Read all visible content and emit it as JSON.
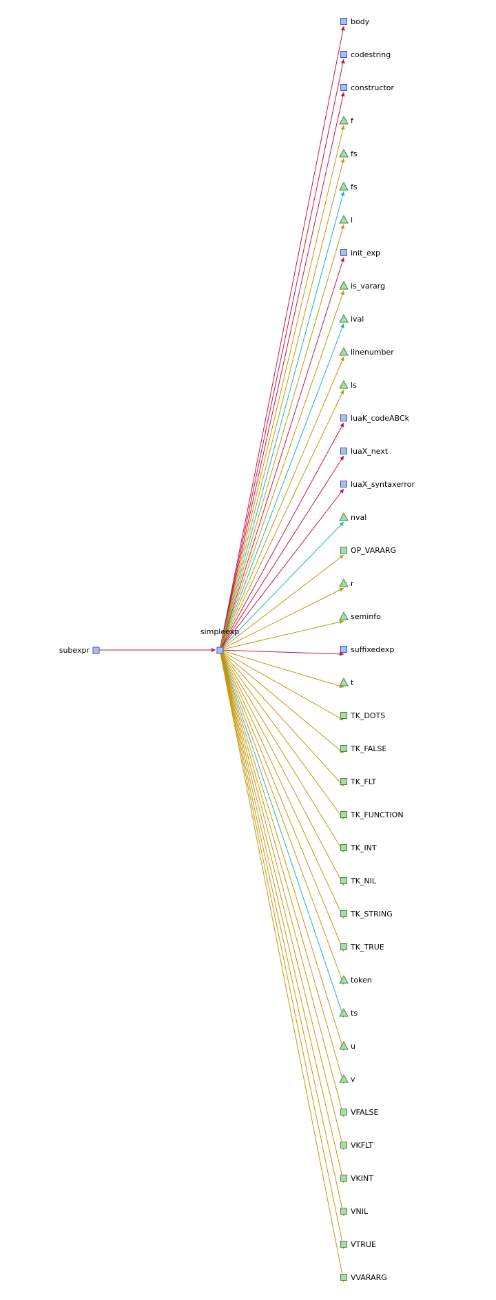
{
  "colors": {
    "call": "#c8143c",
    "read": "#c8960a",
    "write": "#1ab4b4",
    "func_fill": "#aabff0",
    "func_stroke": "#3c5aa0",
    "var_fill": "#aed9ae",
    "var_stroke": "#3c8c3c",
    "const_fill": "#aed9ae",
    "const_stroke": "#3c8c3c"
  },
  "source": {
    "id": "subexpr",
    "label": "subexpr",
    "shape": "square-blue"
  },
  "center": {
    "id": "simpleexp",
    "label": "simpleexp",
    "shape": "square-blue"
  },
  "targets": [
    {
      "label": "body",
      "shape": "square-blue",
      "edge": "call"
    },
    {
      "label": "codestring",
      "shape": "square-blue",
      "edge": "call"
    },
    {
      "label": "constructor",
      "shape": "square-blue",
      "edge": "call"
    },
    {
      "label": "f",
      "shape": "triangle",
      "edge": "read"
    },
    {
      "label": "fs",
      "shape": "triangle",
      "edge": "read"
    },
    {
      "label": "fs",
      "shape": "triangle",
      "edge": "write"
    },
    {
      "label": "i",
      "shape": "triangle",
      "edge": "read"
    },
    {
      "label": "init_exp",
      "shape": "square-blue",
      "edge": "call"
    },
    {
      "label": "is_vararg",
      "shape": "triangle",
      "edge": "read"
    },
    {
      "label": "ival",
      "shape": "triangle",
      "edge": "write"
    },
    {
      "label": "linenumber",
      "shape": "triangle",
      "edge": "read"
    },
    {
      "label": "ls",
      "shape": "triangle",
      "edge": "read"
    },
    {
      "label": "luaK_codeABCk",
      "shape": "square-blue",
      "edge": "call"
    },
    {
      "label": "luaX_next",
      "shape": "square-blue",
      "edge": "call"
    },
    {
      "label": "luaX_syntaxerror",
      "shape": "square-blue",
      "edge": "call"
    },
    {
      "label": "nval",
      "shape": "triangle",
      "edge": "write"
    },
    {
      "label": "OP_VARARG",
      "shape": "square-green",
      "edge": "read"
    },
    {
      "label": "r",
      "shape": "triangle",
      "edge": "read"
    },
    {
      "label": "seminfo",
      "shape": "triangle",
      "edge": "read"
    },
    {
      "label": "suffixedexp",
      "shape": "square-blue",
      "edge": "call"
    },
    {
      "label": "t",
      "shape": "triangle",
      "edge": "read"
    },
    {
      "label": "TK_DOTS",
      "shape": "square-green",
      "edge": "read"
    },
    {
      "label": "TK_FALSE",
      "shape": "square-green",
      "edge": "read"
    },
    {
      "label": "TK_FLT",
      "shape": "square-green",
      "edge": "read"
    },
    {
      "label": "TK_FUNCTION",
      "shape": "square-green",
      "edge": "read"
    },
    {
      "label": "TK_INT",
      "shape": "square-green",
      "edge": "read"
    },
    {
      "label": "TK_NIL",
      "shape": "square-green",
      "edge": "read"
    },
    {
      "label": "TK_STRING",
      "shape": "square-green",
      "edge": "read"
    },
    {
      "label": "TK_TRUE",
      "shape": "square-green",
      "edge": "read"
    },
    {
      "label": "token",
      "shape": "triangle",
      "edge": "read"
    },
    {
      "label": "ts",
      "shape": "triangle",
      "edge": "write"
    },
    {
      "label": "u",
      "shape": "triangle",
      "edge": "read"
    },
    {
      "label": "v",
      "shape": "triangle",
      "edge": "read"
    },
    {
      "label": "VFALSE",
      "shape": "square-green",
      "edge": "read"
    },
    {
      "label": "VKFLT",
      "shape": "square-green",
      "edge": "read"
    },
    {
      "label": "VKINT",
      "shape": "square-green",
      "edge": "read"
    },
    {
      "label": "VNIL",
      "shape": "square-green",
      "edge": "read"
    },
    {
      "label": "VTRUE",
      "shape": "square-green",
      "edge": "read"
    },
    {
      "label": "VVARARG",
      "shape": "square-green",
      "edge": "read"
    }
  ]
}
